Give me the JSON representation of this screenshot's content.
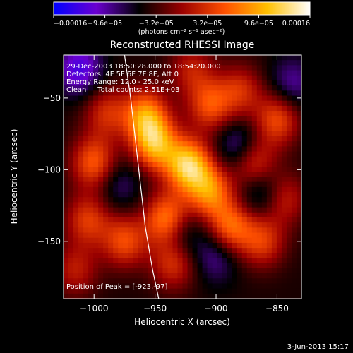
{
  "chart_data": {
    "type": "heatmap",
    "title": "Reconstructed RHESSI Image",
    "xlabel": "Heliocentric X (arcsec)",
    "ylabel": "Heliocentric Y (arcsec)",
    "xlim": [
      -1025,
      -830
    ],
    "ylim": [
      -190,
      -20
    ],
    "x_ticks": [
      -1000,
      -950,
      -900,
      -850
    ],
    "x_tick_labels": [
      "−1000",
      "−950",
      "−900",
      "−850"
    ],
    "y_ticks": [
      -50,
      -100,
      -150
    ],
    "y_tick_labels": [
      "−50",
      "−100",
      "−150"
    ],
    "colorbar": {
      "min": -0.00016,
      "max": 0.00016,
      "ticks": [
        -0.00016,
        -9.6e-05,
        -3.2e-05,
        3.2e-05,
        9.6e-05,
        0.00016
      ],
      "tick_labels": [
        "−0.00016",
        "−9.6e−05",
        "−3.2e−05",
        "3.2e−05",
        "9.6e−05",
        "0.00016"
      ],
      "units_label": "(photons cm⁻² s⁻¹ asec⁻²)",
      "colors": [
        "#0000ff",
        "#6a00d0",
        "#000000",
        "#9a0000",
        "#ff5000",
        "#ffc000",
        "#ffffff"
      ]
    },
    "annotations": {
      "time": "29-Dec-2003 18:50:28.000 to 18:54:20.000",
      "detectors": "Detectors: 4F 5F 6F 7F 8F, Att 0",
      "energy": "Energy Range: 12.0 - 25.0 keV",
      "method": "Clean     Total counts: 2.51E+03",
      "peak": "Position of Peak = [-923,-97]"
    },
    "peak": {
      "x": -923,
      "y": -97
    },
    "limb_curve": [
      [
        -975,
        -20
      ],
      [
        -970,
        -50
      ],
      [
        -966,
        -80
      ],
      [
        -962,
        -110
      ],
      [
        -958,
        -140
      ],
      [
        -952,
        -170
      ],
      [
        -947,
        -190
      ]
    ],
    "sources": [
      {
        "x": -923,
        "y": -97,
        "v": 0.00016
      },
      {
        "x": -950,
        "y": -82,
        "v": 0.000135
      },
      {
        "x": -940,
        "y": -135,
        "v": 0.00013
      },
      {
        "x": -958,
        "y": -62,
        "v": 0.00012
      },
      {
        "x": -905,
        "y": -115,
        "v": 0.000115
      },
      {
        "x": -888,
        "y": -140,
        "v": 0.000105
      },
      {
        "x": -1000,
        "y": -95,
        "v": 0.0001
      },
      {
        "x": -870,
        "y": -95,
        "v": 0.0001
      },
      {
        "x": -905,
        "y": -55,
        "v": 9e-05
      },
      {
        "x": -975,
        "y": -150,
        "v": 9e-05
      },
      {
        "x": -935,
        "y": -165,
        "v": 8e-05
      },
      {
        "x": -850,
        "y": -65,
        "v": 9e-05
      },
      {
        "x": -1005,
        "y": -135,
        "v": 8e-05
      },
      {
        "x": -990,
        "y": -60,
        "v": 7e-05
      },
      {
        "x": -862,
        "y": -150,
        "v": 8e-05
      },
      {
        "x": -880,
        "y": -45,
        "v": 7e-05
      },
      {
        "x": -1015,
        "y": -170,
        "v": 6e-05
      },
      {
        "x": -845,
        "y": -120,
        "v": 7e-05
      },
      {
        "x": -920,
        "y": -30,
        "v": 6e-05
      },
      {
        "x": -1012,
        "y": -30,
        "v": -8e-05
      },
      {
        "x": -930,
        "y": -145,
        "v": -6e-05
      },
      {
        "x": -880,
        "y": -85,
        "v": -7e-05
      },
      {
        "x": -862,
        "y": -115,
        "v": -6e-05
      },
      {
        "x": -900,
        "y": -160,
        "v": -5e-05
      },
      {
        "x": -838,
        "y": -40,
        "v": -5e-05
      },
      {
        "x": -980,
        "y": -110,
        "v": -4e-05
      }
    ],
    "grid": false
  },
  "footer": {
    "date": "3-Jun-2013 15:17"
  }
}
